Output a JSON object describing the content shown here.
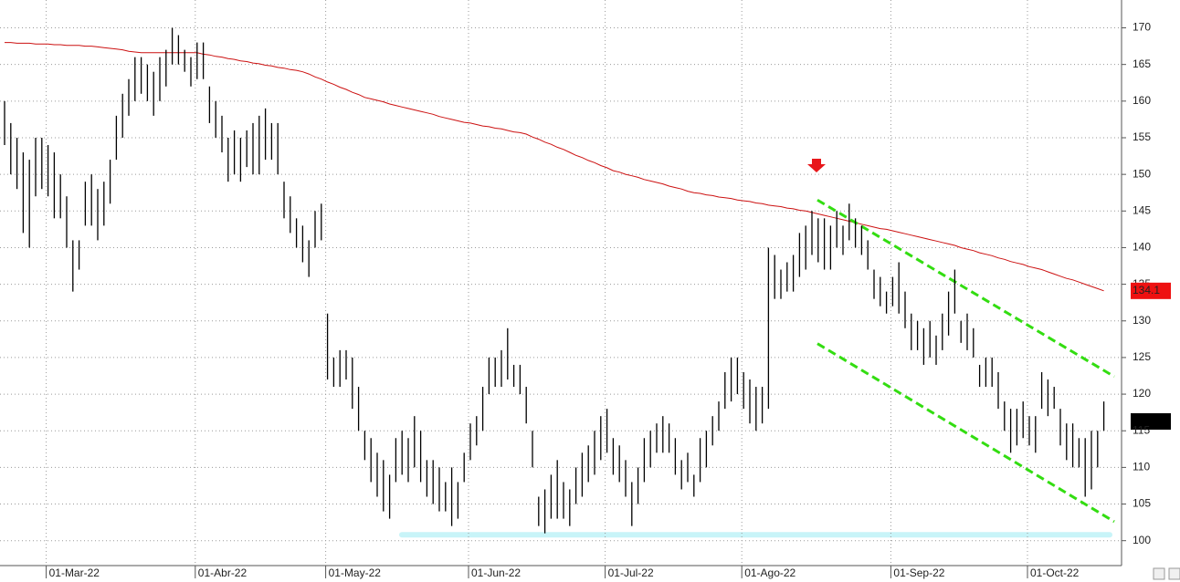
{
  "chart_data": {
    "type": "ohlc",
    "color": "#000000",
    "categories": [
      null,
      null,
      null,
      null,
      null,
      null,
      null,
      "01-Mar-22",
      null,
      null,
      null,
      null,
      null,
      null,
      null,
      null,
      null,
      null,
      null,
      null,
      null,
      null,
      null,
      null,
      null,
      null,
      null,
      null,
      null,
      null,
      null,
      "01-Abr-22",
      null,
      null,
      null,
      null,
      null,
      null,
      null,
      null,
      null,
      null,
      null,
      null,
      null,
      null,
      null,
      null,
      null,
      null,
      null,
      null,
      "01-May-22",
      null,
      null,
      null,
      null,
      null,
      null,
      null,
      null,
      null,
      null,
      null,
      null,
      null,
      null,
      null,
      null,
      null,
      null,
      null,
      null,
      null,
      null,
      "01-Jun-22",
      null,
      null,
      null,
      null,
      null,
      null,
      null,
      null,
      null,
      null,
      null,
      null,
      null,
      null,
      null,
      null,
      null,
      null,
      null,
      null,
      null,
      "01-Jul-22",
      null,
      null,
      null,
      null,
      null,
      null,
      null,
      null,
      null,
      null,
      null,
      null,
      null,
      null,
      null,
      null,
      null,
      null,
      null,
      null,
      null,
      "01-Ago-22",
      null,
      null,
      null,
      null,
      null,
      null,
      null,
      null,
      null,
      null,
      null,
      null,
      null,
      null,
      null,
      null,
      null,
      null,
      null,
      null,
      null,
      null,
      null,
      "01-Sep-22",
      null,
      null,
      null,
      null,
      null,
      null,
      null,
      null,
      null,
      null,
      null,
      null,
      null,
      null,
      null,
      null,
      null,
      null,
      null,
      null,
      null,
      "01-Oct-22",
      null,
      null,
      null,
      null,
      null,
      null,
      null,
      null,
      null,
      null,
      null,
      null
    ],
    "high": [
      160,
      157,
      155,
      153,
      152,
      155,
      155,
      154,
      153,
      150,
      147,
      141,
      141,
      149,
      150,
      148,
      149,
      152,
      158,
      161,
      163,
      166,
      166,
      165,
      164,
      166,
      167,
      170,
      169,
      167,
      166,
      168,
      168,
      162,
      160,
      158,
      155,
      156,
      155,
      156,
      157,
      158,
      159,
      157,
      157,
      149,
      147,
      144,
      143,
      141,
      145,
      146,
      131,
      125,
      126,
      126,
      125,
      121,
      115,
      114,
      112,
      111,
      109,
      114,
      115,
      114,
      117,
      115,
      111,
      111,
      110,
      108,
      110,
      108,
      112,
      116,
      117,
      121,
      125,
      125,
      126,
      129,
      124,
      124,
      121,
      115,
      106,
      107,
      109,
      111,
      108,
      107,
      110,
      112,
      113,
      115,
      117,
      118,
      114,
      113,
      111,
      108,
      110,
      114,
      115,
      116,
      117,
      116,
      114,
      111,
      112,
      109,
      114,
      115,
      117,
      119,
      123,
      125,
      125,
      123,
      122,
      121,
      121,
      140,
      139,
      137,
      138,
      139,
      142,
      143,
      145,
      144,
      144,
      143,
      145,
      143,
      146,
      144,
      143,
      141,
      137,
      136,
      134,
      136,
      138,
      134,
      131,
      130,
      129,
      130,
      128,
      131,
      134,
      137,
      130,
      131,
      129,
      124,
      125,
      125,
      123,
      119,
      118,
      118,
      119,
      117,
      117,
      123,
      122,
      121,
      118,
      116,
      116,
      114,
      114,
      115,
      115,
      119
    ],
    "low": [
      154,
      150,
      148,
      142,
      140,
      147,
      148,
      147,
      144,
      144,
      140,
      134,
      137,
      143,
      143,
      141,
      143,
      146,
      152,
      155,
      158,
      160,
      161,
      160,
      158,
      160,
      162,
      165,
      165,
      164,
      162,
      163,
      163,
      157,
      155,
      153,
      149,
      150,
      149,
      151,
      150,
      150,
      152,
      152,
      150,
      144,
      142,
      140,
      138,
      136,
      140,
      141,
      122,
      121,
      121,
      122,
      118,
      115,
      111,
      108,
      106,
      104,
      103,
      108,
      109,
      108,
      110,
      108,
      106,
      105,
      104,
      104,
      102,
      103,
      108,
      111,
      113,
      115,
      120,
      121,
      121,
      122,
      121,
      120,
      116,
      110,
      102,
      101,
      103,
      103,
      103,
      102,
      105,
      106,
      108,
      109,
      111,
      112,
      109,
      108,
      106,
      102,
      105,
      108,
      110,
      112,
      112,
      112,
      109,
      107,
      108,
      106,
      108,
      110,
      113,
      115,
      118,
      119,
      120,
      118,
      116,
      115,
      116,
      118,
      133,
      133,
      134,
      134,
      136,
      137,
      139,
      138,
      137,
      137,
      140,
      139,
      141,
      140,
      139,
      137,
      133,
      132,
      131,
      132,
      131,
      129,
      126,
      126,
      124,
      125,
      124,
      126,
      128,
      131,
      127,
      126,
      125,
      121,
      121,
      121,
      118,
      115,
      112,
      113,
      114,
      113,
      112,
      118,
      117,
      118,
      113,
      111,
      110,
      110,
      106,
      107,
      110,
      115
    ],
    "moving_average": {
      "color": "#cc1111",
      "last_value": 134.1,
      "label_color": "#ee1111",
      "values": [
        168.0,
        168.0,
        167.9,
        167.9,
        167.9,
        167.8,
        167.8,
        167.8,
        167.7,
        167.7,
        167.6,
        167.6,
        167.6,
        167.5,
        167.5,
        167.4,
        167.3,
        167.2,
        167.1,
        167.0,
        166.8,
        166.7,
        166.6,
        166.6,
        166.6,
        166.6,
        166.6,
        166.6,
        166.6,
        166.6,
        166.6,
        166.6,
        166.4,
        166.3,
        166.1,
        166.0,
        165.8,
        165.7,
        165.5,
        165.4,
        165.2,
        165.1,
        164.9,
        164.8,
        164.6,
        164.5,
        164.3,
        164.2,
        164.0,
        163.7,
        163.3,
        163.0,
        162.6,
        162.3,
        161.9,
        161.6,
        161.2,
        160.9,
        160.5,
        160.3,
        160.1,
        159.9,
        159.6,
        159.4,
        159.2,
        159.0,
        158.8,
        158.6,
        158.4,
        158.2,
        157.9,
        157.7,
        157.5,
        157.3,
        157.1,
        157.0,
        156.8,
        156.6,
        156.5,
        156.3,
        156.2,
        156.0,
        155.8,
        155.7,
        155.5,
        155.1,
        154.8,
        154.4,
        154.1,
        153.7,
        153.4,
        153.0,
        152.6,
        152.3,
        151.9,
        151.6,
        151.2,
        150.9,
        150.5,
        150.3,
        150.0,
        149.8,
        149.6,
        149.3,
        149.1,
        148.9,
        148.7,
        148.4,
        148.2,
        148.0,
        147.7,
        147.5,
        147.4,
        147.2,
        147.1,
        146.9,
        146.8,
        146.7,
        146.5,
        146.4,
        146.3,
        146.1,
        146.0,
        145.8,
        145.7,
        145.6,
        145.4,
        145.3,
        145.1,
        145.0,
        144.8,
        144.6,
        144.4,
        144.2,
        144.0,
        143.8,
        143.6,
        143.4,
        143.2,
        143.0,
        142.8,
        142.6,
        142.5,
        142.3,
        142.1,
        141.9,
        141.7,
        141.5,
        141.3,
        141.1,
        140.9,
        140.7,
        140.5,
        140.3,
        140.0,
        139.8,
        139.6,
        139.3,
        139.1,
        138.9,
        138.6,
        138.4,
        138.1,
        137.9,
        137.7,
        137.4,
        137.2,
        137.0,
        136.7,
        136.4,
        136.1,
        135.8,
        135.6,
        135.3,
        135.0,
        134.7,
        134.4,
        134.1
      ]
    },
    "trendlines": [
      {
        "color": "#33dd11",
        "values": [
          146.5,
          122.4
        ]
      },
      {
        "color": "#33dd11",
        "values": [
          126.9,
          102.6
        ]
      }
    ],
    "support": {
      "color": "#c8f4f8",
      "value": 100.8
    },
    "ylim": [
      96.6,
      173.8
    ],
    "yticks": [
      100,
      105,
      110,
      115,
      120,
      125,
      130,
      135,
      140,
      145,
      150,
      155,
      160,
      165,
      170
    ],
    "grid": true
  }
}
